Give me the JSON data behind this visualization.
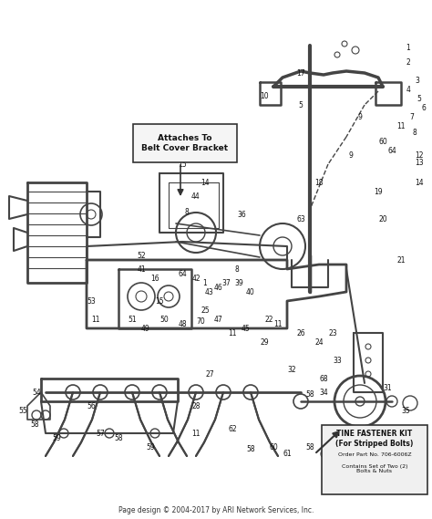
{
  "title": "",
  "background_color": "#ffffff",
  "footer_text": "Page design © 2004-2017 by ARI Network Services, Inc.",
  "callout_box_text": "Attaches To\nBelt Cover Bracket",
  "tine_kit_title": "TINE FASTENER KIT\n(For Stripped Bolts)",
  "tine_kit_order": "Order Part No. 706-6006Z",
  "tine_kit_contains": "Contains Set of Two (2)\nBolts & Nuts",
  "fig_width": 4.74,
  "fig_height": 5.69,
  "dpi": 100
}
